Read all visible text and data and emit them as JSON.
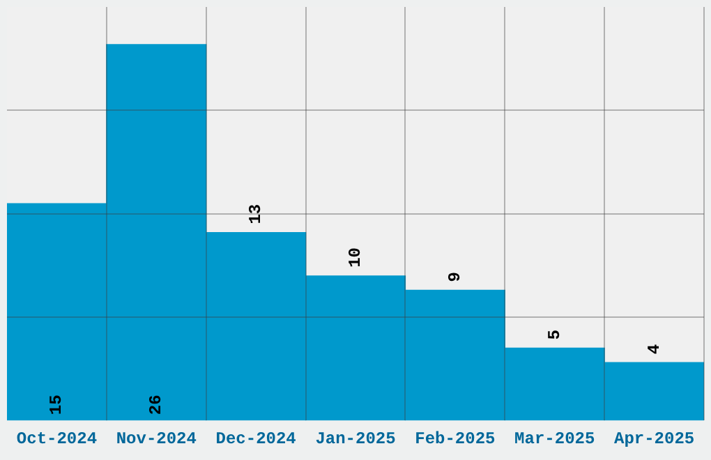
{
  "chart_data": {
    "type": "bar",
    "categories": [
      "Oct-2024",
      "Nov-2024",
      "Dec-2024",
      "Jan-2025",
      "Feb-2025",
      "Mar-2025",
      "Apr-2025"
    ],
    "values": [
      15,
      26,
      13,
      10,
      9,
      5,
      4
    ],
    "color": "#0099cc",
    "ylim": [
      0,
      28.6
    ],
    "yticks": [
      {
        "value": 7.15,
        "label": null
      },
      {
        "value": 14.3,
        "label": null
      },
      {
        "value": 21.45,
        "label": null
      }
    ],
    "grid": true,
    "data_labels": true,
    "tick_labels": "x"
  }
}
